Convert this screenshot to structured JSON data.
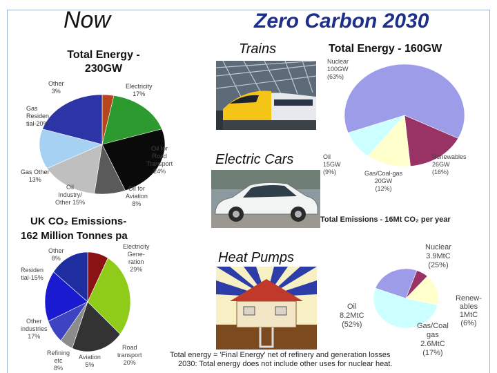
{
  "slide": {
    "now_label": "Now",
    "future_title": "Zero Carbon 2030",
    "trains_label": "Trains",
    "electric_cars_label": "Electric Cars",
    "heat_pumps_label": "Heat Pumps",
    "footnote_line1": "Total energy = 'Final Energy' net of refinery and generation losses",
    "footnote_line2": "2030: Total energy does not include other uses for nuclear heat."
  },
  "charts": {
    "now_energy": {
      "title_line1": "Total Energy -",
      "title_line2": "230GW",
      "labels": {
        "other": [
          "Other",
          "3%"
        ],
        "electricity": [
          "Electricity",
          "17%"
        ],
        "gas_residential": [
          "Gas",
          "Residen",
          "tial-20%"
        ],
        "gas_other": [
          "Gas Other",
          "13%"
        ],
        "oil_industry": [
          "Oil",
          "Industry/",
          "Other 15%"
        ],
        "oil_aviation": [
          "Oil for",
          "Aviation",
          "8%"
        ],
        "oil_road": [
          "Oil for",
          "Road",
          "Transport",
          "24%"
        ]
      }
    },
    "now_emissions": {
      "title_line1": "UK CO₂ Emissions-",
      "title_line2": "162 Million Tonnes pa",
      "labels": {
        "other": [
          "Other",
          "8%"
        ],
        "electricity": [
          "Electricity",
          "Gene-",
          "ration",
          "29%"
        ],
        "residential": [
          "Residen",
          "tial-15%"
        ],
        "other_industries": [
          "Other",
          "industries",
          "17%"
        ],
        "refining": [
          "Refining",
          "etc",
          "8%"
        ],
        "aviation": [
          "Aviation",
          "5%"
        ],
        "road": [
          "Road",
          "transport",
          "20%"
        ]
      }
    },
    "future_energy": {
      "title": "Total Energy - 160GW",
      "labels": {
        "nuclear": [
          "Nuclear",
          "100GW",
          "(63%)"
        ],
        "renewables": [
          "Renewables",
          "26GW",
          "(16%)"
        ],
        "gas": [
          "Gas/Coal-gas",
          "20GW",
          "(12%)"
        ],
        "oil": [
          "Oil",
          "15GW",
          "(9%)"
        ]
      }
    },
    "future_emissions": {
      "title": "Total Emissions - 16Mt CO₂ per year",
      "labels": {
        "nuclear": [
          "Nuclear",
          "3.9MtC",
          "(25%)"
        ],
        "renewables": [
          "Renew-",
          "ables",
          "1MtC",
          "(6%)"
        ],
        "gas": [
          "Gas/Coal",
          "gas",
          "2.6MtC",
          "(17%)"
        ],
        "oil": [
          "Oil",
          "8.2MtC",
          "(52%)"
        ]
      }
    }
  },
  "chart_data": [
    {
      "type": "pie",
      "title": "Total Energy - 230GW",
      "categories": [
        "Other",
        "Electricity",
        "Oil for Road Transport",
        "Oil for Aviation",
        "Oil Industry/Other",
        "Gas Other",
        "Gas Residential"
      ],
      "values": [
        3,
        17,
        24,
        8,
        15,
        13,
        20
      ],
      "colors": [
        "#b5461d",
        "#2c9a2e",
        "#0a0a0a",
        "#5a5a5a",
        "#bfbfbf",
        "#a6d1f2",
        "#2c35a6"
      ]
    },
    {
      "type": "pie",
      "title": "UK CO₂ Emissions- 162 Million Tonnes pa",
      "categories": [
        "Other",
        "Electricity Generation",
        "Road transport",
        "Aviation",
        "Refining etc",
        "Other industries",
        "Residential"
      ],
      "values": [
        8,
        29,
        20,
        5,
        8,
        17,
        15
      ],
      "colors": [
        "#8a1212",
        "#8fcc1a",
        "#333333",
        "#8c8c8c",
        "#3d44c2",
        "#1a1ad0",
        "#1e2ea0"
      ]
    },
    {
      "type": "pie",
      "title": "Total Energy - 160GW",
      "categories": [
        "Nuclear",
        "Renewables",
        "Gas/Coal-gas",
        "Oil"
      ],
      "values": [
        63,
        16,
        12,
        9
      ],
      "colors": [
        "#9c9ce8",
        "#993366",
        "#ffffcc",
        "#ccffff"
      ]
    },
    {
      "type": "pie",
      "title": "Total Emissions - 16Mt CO₂ per year",
      "categories": [
        "Nuclear",
        "Renewables",
        "Gas/Coal gas",
        "Oil"
      ],
      "values": [
        25,
        6,
        17,
        52
      ],
      "colors": [
        "#9c9ce8",
        "#993366",
        "#ffffcc",
        "#ccffff"
      ]
    }
  ]
}
